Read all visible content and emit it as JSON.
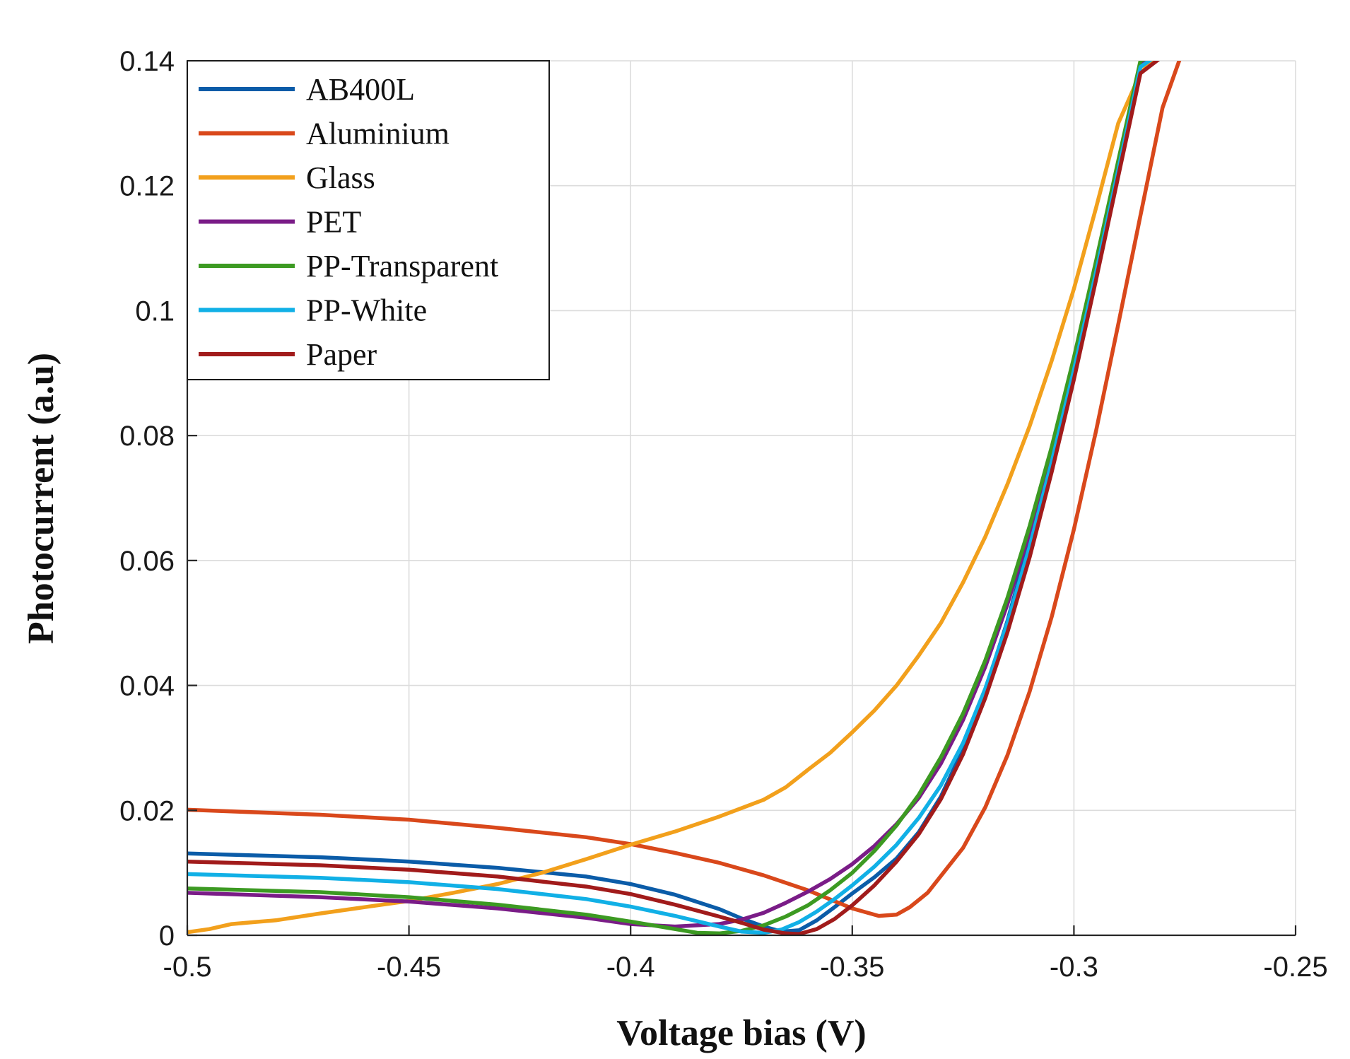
{
  "chart_data": {
    "type": "line",
    "title": "",
    "xlabel": "Voltage bias (V)",
    "ylabel": "Photocurrent (a.u)",
    "xlim": [
      -0.5,
      -0.25
    ],
    "ylim": [
      0,
      0.14
    ],
    "xticks": [
      -0.5,
      -0.45,
      -0.4,
      -0.35,
      -0.3,
      -0.25
    ],
    "xtick_labels": [
      "-0.5",
      "-0.45",
      "-0.4",
      "-0.35",
      "-0.3",
      "-0.25"
    ],
    "yticks": [
      0,
      0.02,
      0.04,
      0.06,
      0.08,
      0.1,
      0.12,
      0.14
    ],
    "ytick_labels": [
      "0",
      "0.02",
      "0.04",
      "0.06",
      "0.08",
      "0.1",
      "0.12",
      "0.14"
    ],
    "grid": true,
    "legend_position": "top-left",
    "series": [
      {
        "name": "AB400L",
        "color": "#0b5ca8",
        "x": [
          -0.5,
          -0.47,
          -0.45,
          -0.43,
          -0.41,
          -0.4,
          -0.39,
          -0.38,
          -0.375,
          -0.37,
          -0.366,
          -0.362,
          -0.358,
          -0.354,
          -0.35,
          -0.345,
          -0.34,
          -0.335,
          -0.33,
          -0.325,
          -0.32,
          -0.315,
          -0.31,
          -0.305,
          -0.3,
          -0.295,
          -0.29,
          -0.285,
          -0.28
        ],
        "y": [
          0.0131,
          0.0125,
          0.0118,
          0.0108,
          0.0094,
          0.0082,
          0.0065,
          0.0042,
          0.0027,
          0.0014,
          0.0006,
          0.0008,
          0.0024,
          0.0045,
          0.0067,
          0.0093,
          0.0123,
          0.0165,
          0.0222,
          0.0298,
          0.0392,
          0.0503,
          0.0632,
          0.0775,
          0.0922,
          0.1078,
          0.1238,
          0.1398,
          0.1415
        ]
      },
      {
        "name": "Aluminium",
        "color": "#d9481b",
        "x": [
          -0.5,
          -0.47,
          -0.45,
          -0.43,
          -0.41,
          -0.4,
          -0.39,
          -0.38,
          -0.37,
          -0.36,
          -0.35,
          -0.344,
          -0.34,
          -0.337,
          -0.333,
          -0.33,
          -0.325,
          -0.32,
          -0.315,
          -0.31,
          -0.305,
          -0.3,
          -0.295,
          -0.29,
          -0.285,
          -0.28,
          -0.276
        ],
        "y": [
          0.0201,
          0.0193,
          0.0185,
          0.0172,
          0.0157,
          0.0146,
          0.0132,
          0.0116,
          0.0096,
          0.0072,
          0.0043,
          0.0031,
          0.0033,
          0.0045,
          0.0068,
          0.0095,
          0.014,
          0.0205,
          0.0288,
          0.039,
          0.051,
          0.065,
          0.0808,
          0.0978,
          0.1152,
          0.1325,
          0.1405
        ]
      },
      {
        "name": "Glass",
        "color": "#f2a01c",
        "x": [
          -0.5,
          -0.495,
          -0.49,
          -0.485,
          -0.48,
          -0.47,
          -0.46,
          -0.45,
          -0.44,
          -0.43,
          -0.42,
          -0.41,
          -0.4,
          -0.39,
          -0.38,
          -0.37,
          -0.365,
          -0.36,
          -0.355,
          -0.35,
          -0.345,
          -0.34,
          -0.335,
          -0.33,
          -0.325,
          -0.32,
          -0.315,
          -0.31,
          -0.305,
          -0.3,
          -0.295,
          -0.29,
          -0.285,
          -0.281,
          -0.278
        ],
        "y": [
          0.0005,
          0.001,
          0.0018,
          0.0021,
          0.0024,
          0.0035,
          0.0045,
          0.0055,
          0.0068,
          0.0082,
          0.01,
          0.0122,
          0.0145,
          0.0166,
          0.019,
          0.0217,
          0.0237,
          0.0265,
          0.0292,
          0.0325,
          0.036,
          0.04,
          0.0448,
          0.05,
          0.0565,
          0.0638,
          0.0722,
          0.0815,
          0.092,
          0.1035,
          0.1165,
          0.13,
          0.138,
          0.141,
          0.142
        ]
      },
      {
        "name": "PET",
        "color": "#7a1c87",
        "x": [
          -0.5,
          -0.47,
          -0.45,
          -0.43,
          -0.41,
          -0.4,
          -0.39,
          -0.38,
          -0.375,
          -0.37,
          -0.365,
          -0.36,
          -0.355,
          -0.35,
          -0.345,
          -0.34,
          -0.335,
          -0.33,
          -0.325,
          -0.32,
          -0.315,
          -0.31,
          -0.305,
          -0.3,
          -0.295,
          -0.29,
          -0.285,
          -0.279
        ],
        "y": [
          0.0068,
          0.0061,
          0.0054,
          0.0043,
          0.0028,
          0.0018,
          0.0014,
          0.0018,
          0.0025,
          0.0036,
          0.0052,
          0.007,
          0.009,
          0.0114,
          0.0143,
          0.0178,
          0.022,
          0.0275,
          0.0345,
          0.043,
          0.053,
          0.0645,
          0.0775,
          0.0918,
          0.1072,
          0.1235,
          0.1395,
          0.142
        ]
      },
      {
        "name": "PP-Transparent",
        "color": "#3c9a22",
        "x": [
          -0.5,
          -0.47,
          -0.45,
          -0.43,
          -0.41,
          -0.4,
          -0.39,
          -0.385,
          -0.38,
          -0.375,
          -0.37,
          -0.365,
          -0.36,
          -0.355,
          -0.35,
          -0.345,
          -0.34,
          -0.335,
          -0.33,
          -0.325,
          -0.32,
          -0.315,
          -0.31,
          -0.305,
          -0.3,
          -0.295,
          -0.29,
          -0.285,
          -0.28
        ],
        "y": [
          0.0075,
          0.0069,
          0.0061,
          0.0049,
          0.0033,
          0.0022,
          0.001,
          0.0004,
          0.0003,
          0.0007,
          0.0016,
          0.003,
          0.0048,
          0.0072,
          0.01,
          0.0135,
          0.0176,
          0.0225,
          0.0285,
          0.0355,
          0.044,
          0.054,
          0.0655,
          0.0782,
          0.0925,
          0.108,
          0.124,
          0.14,
          0.1415
        ]
      },
      {
        "name": "PP-White",
        "color": "#11b0e6",
        "x": [
          -0.5,
          -0.47,
          -0.45,
          -0.43,
          -0.41,
          -0.4,
          -0.39,
          -0.38,
          -0.375,
          -0.37,
          -0.366,
          -0.362,
          -0.358,
          -0.354,
          -0.35,
          -0.345,
          -0.34,
          -0.335,
          -0.33,
          -0.325,
          -0.32,
          -0.315,
          -0.31,
          -0.305,
          -0.3,
          -0.295,
          -0.29,
          -0.285,
          -0.28
        ],
        "y": [
          0.0098,
          0.0092,
          0.0085,
          0.0074,
          0.0058,
          0.0046,
          0.0031,
          0.0014,
          0.0006,
          0.0004,
          0.0009,
          0.0021,
          0.0038,
          0.0058,
          0.008,
          0.011,
          0.0145,
          0.0188,
          0.024,
          0.0308,
          0.0395,
          0.05,
          0.0622,
          0.0758,
          0.0905,
          0.1062,
          0.1225,
          0.139,
          0.1415
        ]
      },
      {
        "name": "Paper",
        "color": "#a11b1b",
        "x": [
          -0.5,
          -0.47,
          -0.45,
          -0.43,
          -0.41,
          -0.4,
          -0.39,
          -0.38,
          -0.375,
          -0.37,
          -0.365,
          -0.362,
          -0.358,
          -0.354,
          -0.35,
          -0.345,
          -0.34,
          -0.335,
          -0.33,
          -0.325,
          -0.32,
          -0.315,
          -0.31,
          -0.305,
          -0.3,
          -0.295,
          -0.29,
          -0.285,
          -0.278
        ],
        "y": [
          0.0118,
          0.0112,
          0.0105,
          0.0094,
          0.0078,
          0.0066,
          0.0049,
          0.003,
          0.002,
          0.0009,
          0.0003,
          0.0002,
          0.001,
          0.0026,
          0.0048,
          0.008,
          0.0118,
          0.0162,
          0.0218,
          0.029,
          0.038,
          0.0485,
          0.0605,
          0.0742,
          0.089,
          0.105,
          0.1215,
          0.138,
          0.1418
        ]
      }
    ]
  }
}
